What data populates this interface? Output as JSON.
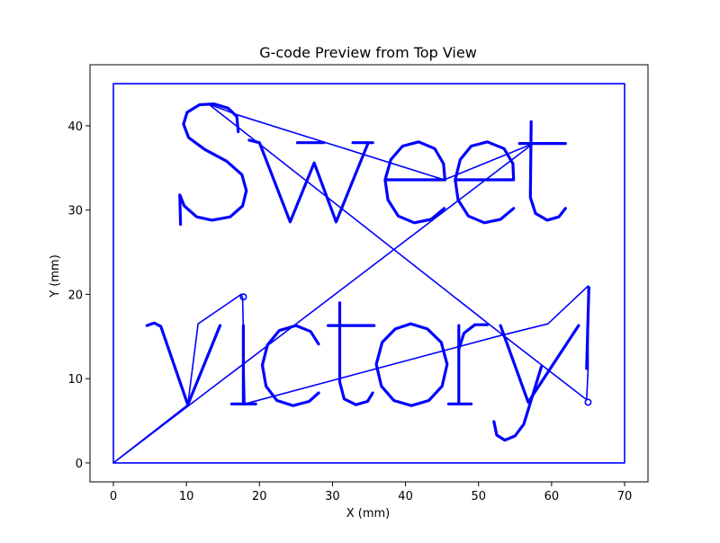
{
  "chart_data": {
    "type": "line",
    "title": "G-code Preview from Top View",
    "xlabel": "X (mm)",
    "ylabel": "Y (mm)",
    "xlim": [
      -3.2,
      73.2
    ],
    "ylim": [
      -2.25,
      47.25
    ],
    "xticks": [
      0,
      10,
      20,
      30,
      40,
      50,
      60,
      70
    ],
    "yticks": [
      0,
      10,
      20,
      30,
      40
    ],
    "grid": false,
    "series_color": "#0000ff",
    "series": [
      {
        "style": "border",
        "points": [
          [
            0,
            0
          ],
          [
            70,
            0
          ],
          [
            70,
            45
          ],
          [
            0,
            45
          ],
          [
            0,
            0
          ]
        ]
      },
      {
        "style": "travel",
        "points": [
          [
            0,
            0
          ],
          [
            10.2,
            6.9
          ],
          [
            11.6,
            16.5
          ],
          [
            17.5,
            20
          ],
          [
            17.7,
            19.6
          ],
          [
            18,
            7
          ],
          [
            52.5,
            15
          ],
          [
            59.5,
            16.5
          ],
          [
            65,
            21
          ],
          [
            65,
            11.2
          ],
          [
            64.8,
            7.5
          ],
          [
            53,
            15.4
          ],
          [
            13,
            42.6
          ],
          [
            17,
            41.3
          ],
          [
            45.3,
            33.6
          ],
          [
            57.5,
            37.9
          ],
          [
            0,
            0
          ]
        ]
      },
      {
        "style": "glyph",
        "name": "S",
        "points": [
          [
            9.2,
            28.3
          ],
          [
            9.1,
            31.8
          ],
          [
            9.7,
            30.5
          ],
          [
            11.4,
            29.2
          ],
          [
            13.5,
            28.8
          ],
          [
            16,
            29.2
          ],
          [
            17.7,
            30.5
          ],
          [
            18.2,
            32.3
          ],
          [
            17.6,
            34.2
          ],
          [
            15.5,
            35.8
          ],
          [
            12.5,
            37.2
          ],
          [
            10.3,
            38.6
          ],
          [
            9.6,
            40.2
          ],
          [
            10.1,
            41.6
          ],
          [
            11.8,
            42.5
          ],
          [
            13.8,
            42.6
          ],
          [
            15.7,
            42.1
          ],
          [
            16.9,
            41.1
          ],
          [
            17.1,
            39.3
          ]
        ]
      },
      {
        "style": "glyph",
        "name": "w",
        "points": [
          [
            18.6,
            38.3
          ],
          [
            20,
            38
          ],
          [
            24.2,
            28.6
          ],
          [
            27.5,
            35.6
          ],
          [
            30.5,
            28.6
          ],
          [
            34.9,
            38
          ]
        ]
      },
      {
        "style": "glyph",
        "name": "w-serif-1",
        "points": [
          [
            25.2,
            38
          ],
          [
            28.8,
            38
          ]
        ]
      },
      {
        "style": "glyph",
        "name": "w-serif-2",
        "points": [
          [
            32.8,
            38
          ],
          [
            35.5,
            38
          ]
        ]
      },
      {
        "style": "glyph",
        "name": "e1",
        "points": [
          [
            37.2,
            33.6
          ],
          [
            45.4,
            33.6
          ],
          [
            45.2,
            35.5
          ],
          [
            44,
            37.3
          ],
          [
            41.8,
            38.1
          ],
          [
            39.6,
            37.6
          ],
          [
            38,
            36
          ],
          [
            37.2,
            33.6
          ],
          [
            37.6,
            31.2
          ],
          [
            39,
            29.3
          ],
          [
            41.2,
            28.5
          ],
          [
            43.5,
            28.9
          ],
          [
            45.3,
            30.2
          ]
        ]
      },
      {
        "style": "glyph",
        "name": "e2",
        "points": [
          [
            46.8,
            33.6
          ],
          [
            54.8,
            33.6
          ],
          [
            54.7,
            35.5
          ],
          [
            53.5,
            37.3
          ],
          [
            51.2,
            38.1
          ],
          [
            49,
            37.6
          ],
          [
            47.5,
            36
          ],
          [
            46.8,
            33.6
          ],
          [
            47.2,
            31.2
          ],
          [
            48.6,
            29.3
          ],
          [
            50.8,
            28.5
          ],
          [
            53,
            28.9
          ],
          [
            54.8,
            30.2
          ]
        ]
      },
      {
        "style": "glyph",
        "name": "t-stem",
        "points": [
          [
            57.2,
            40.5
          ],
          [
            57.1,
            31.5
          ],
          [
            57.8,
            29.6
          ],
          [
            59.4,
            28.8
          ],
          [
            61,
            29.2
          ],
          [
            61.9,
            30.2
          ]
        ]
      },
      {
        "style": "glyph",
        "name": "t-bar",
        "points": [
          [
            55.6,
            37.9
          ],
          [
            61.9,
            37.9
          ]
        ]
      },
      {
        "style": "glyph",
        "name": "v",
        "points": [
          [
            4.6,
            16.3
          ],
          [
            5.6,
            16.6
          ],
          [
            6.5,
            16.2
          ],
          [
            10.2,
            6.9
          ],
          [
            14.6,
            16.3
          ]
        ]
      },
      {
        "style": "glyph",
        "name": "i-stem",
        "points": [
          [
            17.8,
            16.3
          ],
          [
            17.8,
            7
          ]
        ]
      },
      {
        "style": "glyph",
        "name": "i-serif",
        "points": [
          [
            16.2,
            7
          ],
          [
            19.5,
            7
          ]
        ]
      },
      {
        "style": "glyph",
        "name": "c",
        "points": [
          [
            28.1,
            14.1
          ],
          [
            27,
            15.6
          ],
          [
            25,
            16.3
          ],
          [
            22.7,
            15.7
          ],
          [
            21.1,
            14
          ],
          [
            20.4,
            11.6
          ],
          [
            20.9,
            9.1
          ],
          [
            22.4,
            7.4
          ],
          [
            24.6,
            6.8
          ],
          [
            26.8,
            7.3
          ],
          [
            28.1,
            8.3
          ]
        ]
      },
      {
        "style": "glyph",
        "name": "t2-stem",
        "points": [
          [
            31,
            19
          ],
          [
            31,
            9.6
          ],
          [
            31.6,
            7.6
          ],
          [
            33.2,
            6.9
          ],
          [
            34.8,
            7.3
          ],
          [
            35.5,
            8.3
          ]
        ]
      },
      {
        "style": "glyph",
        "name": "t2-bar",
        "points": [
          [
            29.4,
            16.3
          ],
          [
            35.7,
            16.3
          ]
        ]
      },
      {
        "style": "glyph",
        "name": "o",
        "points": [
          [
            40.7,
            16.5
          ],
          [
            43,
            15.9
          ],
          [
            44.9,
            14.3
          ],
          [
            45.7,
            11.7
          ],
          [
            45,
            9.1
          ],
          [
            43.2,
            7.4
          ],
          [
            40.8,
            6.8
          ],
          [
            38.4,
            7.4
          ],
          [
            36.7,
            9.1
          ],
          [
            36,
            11.7
          ],
          [
            36.8,
            14.3
          ],
          [
            38.6,
            15.9
          ],
          [
            40.7,
            16.5
          ]
        ]
      },
      {
        "style": "glyph",
        "name": "r-stem",
        "points": [
          [
            47.3,
            16.3
          ],
          [
            47.3,
            7
          ]
        ]
      },
      {
        "style": "glyph",
        "name": "r-serif",
        "points": [
          [
            45.9,
            7
          ],
          [
            49,
            7
          ]
        ]
      },
      {
        "style": "glyph",
        "name": "r-arm",
        "points": [
          [
            47.3,
            13.5
          ],
          [
            48,
            15.4
          ],
          [
            49.5,
            16.4
          ],
          [
            51.2,
            16.4
          ]
        ]
      },
      {
        "style": "glyph",
        "name": "y",
        "points": [
          [
            53,
            16.3
          ],
          [
            56.8,
            7.2
          ],
          [
            63.7,
            16.3
          ]
        ]
      },
      {
        "style": "glyph",
        "name": "y-tail",
        "points": [
          [
            58.6,
            11.4
          ],
          [
            56.2,
            4.6
          ],
          [
            55,
            3.2
          ],
          [
            53.6,
            2.7
          ],
          [
            52.5,
            3.3
          ],
          [
            52.1,
            4.9
          ]
        ]
      },
      {
        "style": "glyph",
        "name": "exclamation",
        "points": [
          [
            65.1,
            20.8
          ],
          [
            64.8,
            11.2
          ]
        ]
      }
    ],
    "markers": [
      {
        "shape": "circle",
        "x": 17.8,
        "y": 19.7
      },
      {
        "shape": "circle",
        "x": 65.0,
        "y": 7.2
      }
    ]
  }
}
